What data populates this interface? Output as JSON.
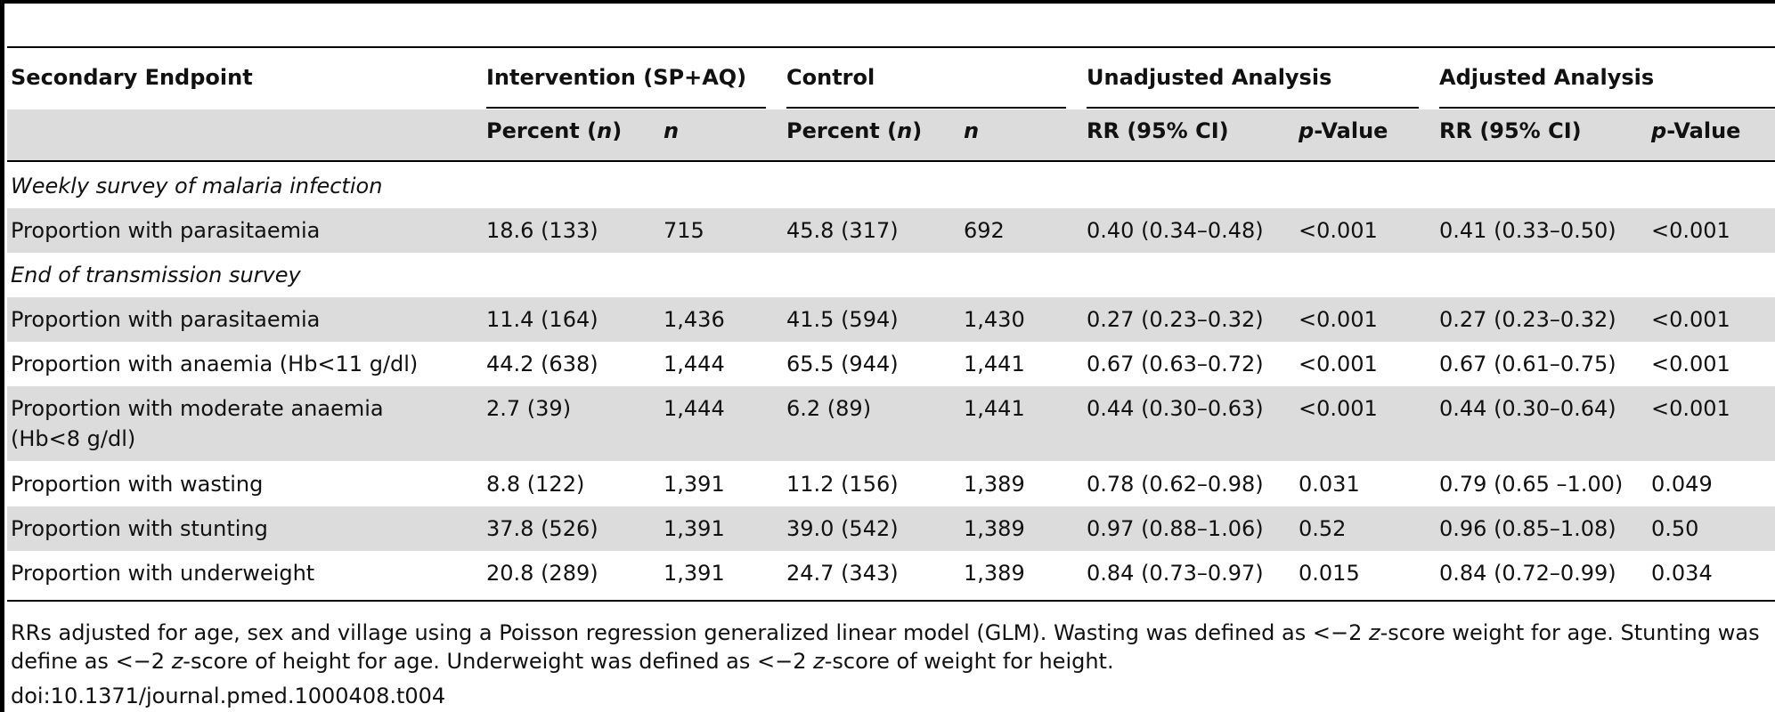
{
  "headers": {
    "secondary_endpoint": "Secondary Endpoint",
    "intervention": "Intervention (SP+AQ)",
    "control": "Control",
    "unadjusted": "Unadjusted Analysis",
    "adjusted": "Adjusted Analysis"
  },
  "subheaders": {
    "percent": "Percent (",
    "n_italic": "n",
    "close_paren": ")",
    "n": "n",
    "rr": "RR (95% CI)",
    "p_italic": "p",
    "value": "-Value"
  },
  "sections": {
    "weekly": "Weekly survey of malaria infection",
    "end": "End of transmission survey"
  },
  "rows": [
    {
      "label": "Proportion with parasitaemia",
      "int_pct": "18.6 (133)",
      "int_n": "715",
      "ctl_pct": "45.8 (317)",
      "ctl_n": "692",
      "un_rr": "0.40 (0.34–0.48)",
      "un_p": "<0.001",
      "ad_rr": "0.41 (0.33–0.50)",
      "ad_p": "<0.001"
    },
    {
      "label": "Proportion with parasitaemia",
      "int_pct": "11.4 (164)",
      "int_n": "1,436",
      "ctl_pct": "41.5 (594)",
      "ctl_n": "1,430",
      "un_rr": "0.27 (0.23–0.32)",
      "un_p": "<0.001",
      "ad_rr": "0.27 (0.23–0.32)",
      "ad_p": "<0.001"
    },
    {
      "label": "Proportion with anaemia (Hb<11 g/dl)",
      "int_pct": "44.2 (638)",
      "int_n": "1,444",
      "ctl_pct": "65.5 (944)",
      "ctl_n": "1,441",
      "un_rr": "0.67 (0.63–0.72)",
      "un_p": "<0.001",
      "ad_rr": "0.67 (0.61–0.75)",
      "ad_p": "<0.001"
    },
    {
      "label": "Proportion with moderate anaemia",
      "label2": "(Hb<8 g/dl)",
      "int_pct": "2.7 (39)",
      "int_n": "1,444",
      "ctl_pct": "6.2 (89)",
      "ctl_n": "1,441",
      "un_rr": "0.44 (0.30–0.63)",
      "un_p": "<0.001",
      "ad_rr": "0.44 (0.30–0.64)",
      "ad_p": "<0.001"
    },
    {
      "label": "Proportion with wasting",
      "int_pct": "8.8 (122)",
      "int_n": "1,391",
      "ctl_pct": "11.2 (156)",
      "ctl_n": "1,389",
      "un_rr": "0.78 (0.62–0.98)",
      "un_p": "0.031",
      "ad_rr": "0.79 (0.65 –1.00)",
      "ad_p": "0.049"
    },
    {
      "label": "Proportion with stunting",
      "int_pct": "37.8 (526)",
      "int_n": "1,391",
      "ctl_pct": "39.0 (542)",
      "ctl_n": "1,389",
      "un_rr": "0.97 (0.88–1.06)",
      "un_p": "0.52",
      "ad_rr": "0.96 (0.85–1.08)",
      "ad_p": "0.50"
    },
    {
      "label": "Proportion with underweight",
      "int_pct": "20.8 (289)",
      "int_n": "1,391",
      "ctl_pct": "24.7 (343)",
      "ctl_n": "1,389",
      "un_rr": "0.84 (0.73–0.97)",
      "un_p": "0.015",
      "ad_rr": "0.84 (0.72–0.99)",
      "ad_p": "0.034"
    }
  ],
  "footnote": {
    "p1": "RRs adjusted for age, sex and village using a Poisson regression generalized linear model (GLM). Wasting was defined as <−2 ",
    "z1": "z",
    "p2": "-score weight for age. Stunting was define as <−2 ",
    "z2": "z",
    "p3": "-score of height for age. Underweight was defined as <−2 ",
    "z3": "z",
    "p4": "-score of weight for height."
  },
  "doi": "doi:10.1371/journal.pmed.1000408.t004"
}
